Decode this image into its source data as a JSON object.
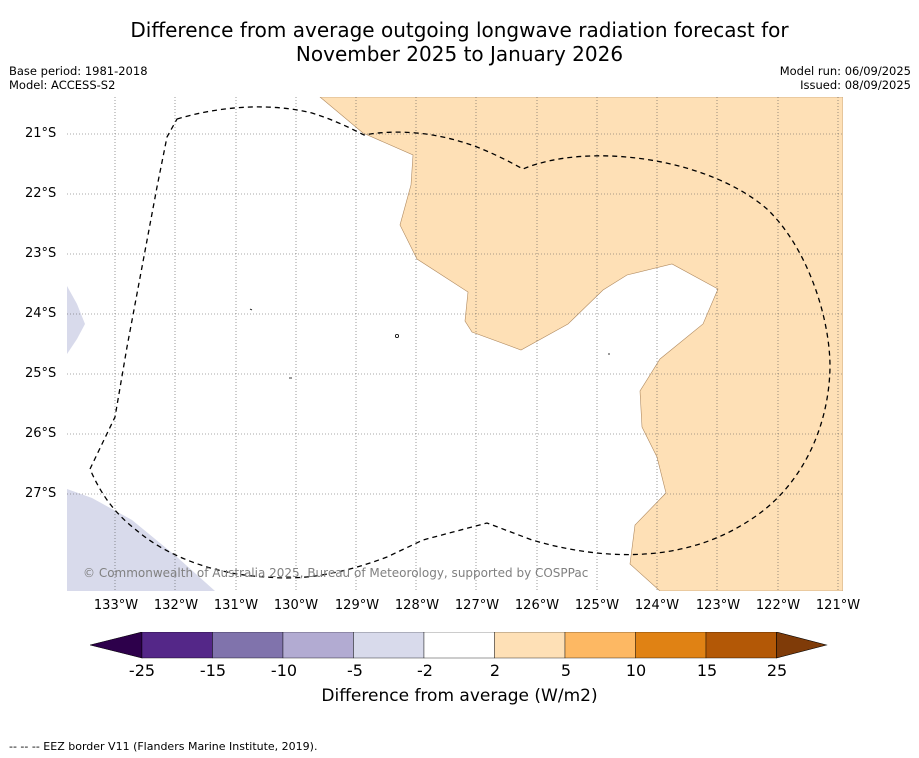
{
  "title_line1": "Difference from average outgoing longwave radiation forecast for",
  "title_line2": "November 2025 to January 2026",
  "meta_left": {
    "base_period": "Base period: 1981-2018",
    "model": "Model: ACCESS-S2"
  },
  "meta_right": {
    "model_run": "Model run: 06/09/2025",
    "issued": "Issued: 08/09/2025"
  },
  "lat_labels": [
    "21°S",
    "22°S",
    "23°S",
    "24°S",
    "25°S",
    "26°S",
    "27°S"
  ],
  "lon_labels": [
    "133°W",
    "132°W",
    "131°W",
    "130°W",
    "129°W",
    "128°W",
    "127°W",
    "126°W",
    "125°W",
    "124°W",
    "123°W",
    "122°W",
    "121°W"
  ],
  "copyright": "© Commonwealth of Australia 2025, Bureau of Meteorology, supported by COSPPac",
  "colorbar": {
    "ticks": [
      "-25",
      "-15",
      "-10",
      "-5",
      "-2",
      "2",
      "5",
      "10",
      "15",
      "25"
    ],
    "colors": [
      "#2d004b",
      "#542788",
      "#8073ac",
      "#b2abd2",
      "#d8daeb",
      "#ffffff",
      "#fee0b6",
      "#fdb863",
      "#e08214",
      "#b35806",
      "#7f3b08"
    ],
    "label": "Difference from average (W/m2)"
  },
  "footer": "--  --  -- EEZ border V11 (Flanders Marine Institute, 2019).",
  "colors": {
    "positive_anomaly": "#fee0b6",
    "negative_anomaly": "#d8daeb",
    "grid": "#444444"
  }
}
